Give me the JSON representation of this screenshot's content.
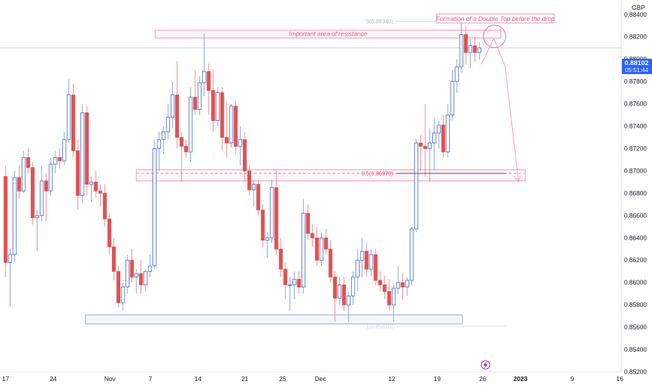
{
  "chart_data": {
    "type": "candlestick",
    "currency_label": "GBP",
    "ylim": [
      0.852,
      0.8853
    ],
    "y_ticks": [
      "0.88400",
      "0.88200",
      "0.88000",
      "0.87800",
      "0.87600",
      "0.87400",
      "0.87200",
      "0.87000",
      "0.86800",
      "0.86600",
      "0.86400",
      "0.86200",
      "0.86000",
      "0.85800",
      "0.85600",
      "0.85400",
      "0.85200"
    ],
    "x_ticks": [
      {
        "label": "17",
        "bold": false
      },
      {
        "label": "24",
        "bold": false
      },
      {
        "label": "Nov",
        "bold": false
      },
      {
        "label": "7",
        "bold": false
      },
      {
        "label": "14",
        "bold": false
      },
      {
        "label": "21",
        "bold": false
      },
      {
        "label": "25",
        "bold": false
      },
      {
        "label": "Dec",
        "bold": false
      },
      {
        "label": "12",
        "bold": false
      },
      {
        "label": "19",
        "bold": false
      },
      {
        "label": "26",
        "bold": false
      },
      {
        "label": "2023",
        "bold": true
      },
      {
        "label": "9",
        "bold": false
      },
      {
        "label": "16",
        "bold": false
      }
    ],
    "last_price": "0.88102",
    "countdown": "05:51:44",
    "up_color": "#4a6fd4",
    "down_color": "#e05252",
    "annotations": {
      "resistance_label": "Important area of resistance",
      "double_top_label": "Formation of a Double Top before the drop",
      "fib_0_label": "0(0.88340)",
      "fib_05_label": "0.5(0.86978)",
      "fib_1_label": "1(0.85610)",
      "resistance_zone": [
        0.8819,
        0.8826
      ],
      "support_zone": [
        0.8563,
        0.8571
      ],
      "middle_zone": [
        0.8691,
        0.8701
      ],
      "fib_0": 0.8834,
      "fib_05": 0.86978,
      "fib_1": 0.8561
    },
    "candles": [
      {
        "o": 0.8695,
        "h": 0.8705,
        "l": 0.8605,
        "c": 0.8618
      },
      {
        "o": 0.8618,
        "h": 0.863,
        "l": 0.8578,
        "c": 0.8625
      },
      {
        "o": 0.8625,
        "h": 0.87,
        "l": 0.8618,
        "c": 0.8694
      },
      {
        "o": 0.8694,
        "h": 0.8705,
        "l": 0.8675,
        "c": 0.8682
      },
      {
        "o": 0.8682,
        "h": 0.8718,
        "l": 0.868,
        "c": 0.8712
      },
      {
        "o": 0.8712,
        "h": 0.872,
        "l": 0.8698,
        "c": 0.8703
      },
      {
        "o": 0.8703,
        "h": 0.8708,
        "l": 0.8652,
        "c": 0.8658
      },
      {
        "o": 0.8658,
        "h": 0.8665,
        "l": 0.8628,
        "c": 0.866
      },
      {
        "o": 0.866,
        "h": 0.8705,
        "l": 0.8655,
        "c": 0.8691
      },
      {
        "o": 0.8691,
        "h": 0.8698,
        "l": 0.8655,
        "c": 0.8682
      },
      {
        "o": 0.8682,
        "h": 0.8712,
        "l": 0.8678,
        "c": 0.8706
      },
      {
        "o": 0.8706,
        "h": 0.8718,
        "l": 0.8698,
        "c": 0.8712
      },
      {
        "o": 0.8712,
        "h": 0.872,
        "l": 0.8702,
        "c": 0.8709
      },
      {
        "o": 0.8709,
        "h": 0.8735,
        "l": 0.8705,
        "c": 0.8728
      },
      {
        "o": 0.8728,
        "h": 0.8782,
        "l": 0.8725,
        "c": 0.8768
      },
      {
        "o": 0.8768,
        "h": 0.8778,
        "l": 0.8712,
        "c": 0.8718
      },
      {
        "o": 0.8718,
        "h": 0.8728,
        "l": 0.8665,
        "c": 0.8678
      },
      {
        "o": 0.8678,
        "h": 0.876,
        "l": 0.8672,
        "c": 0.8752
      },
      {
        "o": 0.8752,
        "h": 0.8758,
        "l": 0.8678,
        "c": 0.8688
      },
      {
        "o": 0.8688,
        "h": 0.8695,
        "l": 0.8672,
        "c": 0.869
      },
      {
        "o": 0.869,
        "h": 0.87,
        "l": 0.8676,
        "c": 0.8682
      },
      {
        "o": 0.8682,
        "h": 0.8688,
        "l": 0.8668,
        "c": 0.868
      },
      {
        "o": 0.868,
        "h": 0.8688,
        "l": 0.865,
        "c": 0.8657
      },
      {
        "o": 0.8657,
        "h": 0.8662,
        "l": 0.8625,
        "c": 0.8632
      },
      {
        "o": 0.8632,
        "h": 0.864,
        "l": 0.8602,
        "c": 0.861
      },
      {
        "o": 0.861,
        "h": 0.8615,
        "l": 0.8578,
        "c": 0.8582
      },
      {
        "o": 0.8582,
        "h": 0.86,
        "l": 0.8575,
        "c": 0.8596
      },
      {
        "o": 0.8596,
        "h": 0.8625,
        "l": 0.859,
        "c": 0.862
      },
      {
        "o": 0.862,
        "h": 0.863,
        "l": 0.86,
        "c": 0.8605
      },
      {
        "o": 0.8605,
        "h": 0.8612,
        "l": 0.859,
        "c": 0.8608
      },
      {
        "o": 0.8608,
        "h": 0.862,
        "l": 0.859,
        "c": 0.8598
      },
      {
        "o": 0.8598,
        "h": 0.8612,
        "l": 0.8592,
        "c": 0.861
      },
      {
        "o": 0.861,
        "h": 0.8625,
        "l": 0.8605,
        "c": 0.8615
      },
      {
        "o": 0.8615,
        "h": 0.8728,
        "l": 0.8612,
        "c": 0.872
      },
      {
        "o": 0.872,
        "h": 0.8735,
        "l": 0.87,
        "c": 0.8728
      },
      {
        "o": 0.8728,
        "h": 0.874,
        "l": 0.8715,
        "c": 0.8735
      },
      {
        "o": 0.8735,
        "h": 0.876,
        "l": 0.8728,
        "c": 0.8748
      },
      {
        "o": 0.8748,
        "h": 0.878,
        "l": 0.8738,
        "c": 0.8768
      },
      {
        "o": 0.8768,
        "h": 0.8798,
        "l": 0.872,
        "c": 0.873
      },
      {
        "o": 0.873,
        "h": 0.8735,
        "l": 0.869,
        "c": 0.8722
      },
      {
        "o": 0.8722,
        "h": 0.8728,
        "l": 0.8712,
        "c": 0.8717
      },
      {
        "o": 0.8717,
        "h": 0.8775,
        "l": 0.8708,
        "c": 0.8766
      },
      {
        "o": 0.8766,
        "h": 0.879,
        "l": 0.875,
        "c": 0.8755
      },
      {
        "o": 0.8755,
        "h": 0.8785,
        "l": 0.875,
        "c": 0.8779
      },
      {
        "o": 0.8779,
        "h": 0.8823,
        "l": 0.8767,
        "c": 0.8789
      },
      {
        "o": 0.8789,
        "h": 0.8796,
        "l": 0.875,
        "c": 0.8772
      },
      {
        "o": 0.8772,
        "h": 0.879,
        "l": 0.8735,
        "c": 0.8745
      },
      {
        "o": 0.8745,
        "h": 0.8775,
        "l": 0.874,
        "c": 0.877
      },
      {
        "o": 0.877,
        "h": 0.8775,
        "l": 0.8718,
        "c": 0.873
      },
      {
        "o": 0.873,
        "h": 0.8762,
        "l": 0.8712,
        "c": 0.8725
      },
      {
        "o": 0.8725,
        "h": 0.876,
        "l": 0.8721,
        "c": 0.8758
      },
      {
        "o": 0.8758,
        "h": 0.8763,
        "l": 0.8715,
        "c": 0.8722
      },
      {
        "o": 0.8722,
        "h": 0.874,
        "l": 0.8705,
        "c": 0.8728
      },
      {
        "o": 0.8728,
        "h": 0.8735,
        "l": 0.869,
        "c": 0.87
      },
      {
        "o": 0.87,
        "h": 0.8705,
        "l": 0.8678,
        "c": 0.8683
      },
      {
        "o": 0.8683,
        "h": 0.8692,
        "l": 0.8668,
        "c": 0.8688
      },
      {
        "o": 0.8688,
        "h": 0.8692,
        "l": 0.866,
        "c": 0.8665
      },
      {
        "o": 0.8665,
        "h": 0.867,
        "l": 0.8632,
        "c": 0.8638
      },
      {
        "o": 0.8638,
        "h": 0.8645,
        "l": 0.8622,
        "c": 0.864
      },
      {
        "o": 0.864,
        "h": 0.8692,
        "l": 0.8635,
        "c": 0.8685
      },
      {
        "o": 0.8685,
        "h": 0.87,
        "l": 0.8625,
        "c": 0.863
      },
      {
        "o": 0.863,
        "h": 0.864,
        "l": 0.8605,
        "c": 0.8612
      },
      {
        "o": 0.8612,
        "h": 0.8618,
        "l": 0.8585,
        "c": 0.8598
      },
      {
        "o": 0.8598,
        "h": 0.8605,
        "l": 0.8575,
        "c": 0.8598
      },
      {
        "o": 0.8598,
        "h": 0.861,
        "l": 0.8585,
        "c": 0.8603
      },
      {
        "o": 0.8603,
        "h": 0.861,
        "l": 0.859,
        "c": 0.8596
      },
      {
        "o": 0.8596,
        "h": 0.8675,
        "l": 0.859,
        "c": 0.8662
      },
      {
        "o": 0.8662,
        "h": 0.867,
        "l": 0.8638,
        "c": 0.8644
      },
      {
        "o": 0.8644,
        "h": 0.8652,
        "l": 0.8632,
        "c": 0.864
      },
      {
        "o": 0.864,
        "h": 0.865,
        "l": 0.8615,
        "c": 0.862
      },
      {
        "o": 0.862,
        "h": 0.8645,
        "l": 0.8615,
        "c": 0.864
      },
      {
        "o": 0.864,
        "h": 0.8648,
        "l": 0.8625,
        "c": 0.863
      },
      {
        "o": 0.863,
        "h": 0.8638,
        "l": 0.86,
        "c": 0.8605
      },
      {
        "o": 0.8605,
        "h": 0.861,
        "l": 0.8565,
        "c": 0.8586
      },
      {
        "o": 0.8586,
        "h": 0.8605,
        "l": 0.858,
        "c": 0.8598
      },
      {
        "o": 0.8598,
        "h": 0.8605,
        "l": 0.8575,
        "c": 0.858
      },
      {
        "o": 0.858,
        "h": 0.8592,
        "l": 0.8565,
        "c": 0.8588
      },
      {
        "o": 0.8588,
        "h": 0.861,
        "l": 0.858,
        "c": 0.8605
      },
      {
        "o": 0.8605,
        "h": 0.863,
        "l": 0.8592,
        "c": 0.862
      },
      {
        "o": 0.862,
        "h": 0.864,
        "l": 0.8605,
        "c": 0.8628
      },
      {
        "o": 0.8628,
        "h": 0.8636,
        "l": 0.8605,
        "c": 0.8612
      },
      {
        "o": 0.8612,
        "h": 0.863,
        "l": 0.8606,
        "c": 0.8625
      },
      {
        "o": 0.8625,
        "h": 0.863,
        "l": 0.8598,
        "c": 0.8602
      },
      {
        "o": 0.8602,
        "h": 0.861,
        "l": 0.8592,
        "c": 0.8598
      },
      {
        "o": 0.8598,
        "h": 0.8606,
        "l": 0.8585,
        "c": 0.8592
      },
      {
        "o": 0.8592,
        "h": 0.8603,
        "l": 0.8575,
        "c": 0.858
      },
      {
        "o": 0.858,
        "h": 0.8598,
        "l": 0.8565,
        "c": 0.8595
      },
      {
        "o": 0.8595,
        "h": 0.8615,
        "l": 0.859,
        "c": 0.86
      },
      {
        "o": 0.86,
        "h": 0.8608,
        "l": 0.8585,
        "c": 0.8596
      },
      {
        "o": 0.8596,
        "h": 0.8605,
        "l": 0.8588,
        "c": 0.8602
      },
      {
        "o": 0.8602,
        "h": 0.865,
        "l": 0.8598,
        "c": 0.8648
      },
      {
        "o": 0.8648,
        "h": 0.8728,
        "l": 0.8645,
        "c": 0.8725
      },
      {
        "o": 0.8725,
        "h": 0.8732,
        "l": 0.87,
        "c": 0.8722
      },
      {
        "o": 0.8722,
        "h": 0.876,
        "l": 0.8695,
        "c": 0.872
      },
      {
        "o": 0.872,
        "h": 0.8738,
        "l": 0.869,
        "c": 0.8725
      },
      {
        "o": 0.8725,
        "h": 0.8748,
        "l": 0.87,
        "c": 0.8734
      },
      {
        "o": 0.8734,
        "h": 0.8745,
        "l": 0.872,
        "c": 0.8741
      },
      {
        "o": 0.8741,
        "h": 0.875,
        "l": 0.8712,
        "c": 0.8717
      },
      {
        "o": 0.8717,
        "h": 0.876,
        "l": 0.8712,
        "c": 0.875
      },
      {
        "o": 0.875,
        "h": 0.879,
        "l": 0.8745,
        "c": 0.878
      },
      {
        "o": 0.878,
        "h": 0.88,
        "l": 0.877,
        "c": 0.8793
      },
      {
        "o": 0.8793,
        "h": 0.8834,
        "l": 0.8788,
        "c": 0.8822
      },
      {
        "o": 0.8822,
        "h": 0.883,
        "l": 0.8795,
        "c": 0.8806
      },
      {
        "o": 0.8806,
        "h": 0.8818,
        "l": 0.8792,
        "c": 0.8812
      },
      {
        "o": 0.8812,
        "h": 0.882,
        "l": 0.8798,
        "c": 0.8806
      },
      {
        "o": 0.8806,
        "h": 0.8815,
        "l": 0.88,
        "c": 0.881
      }
    ]
  }
}
